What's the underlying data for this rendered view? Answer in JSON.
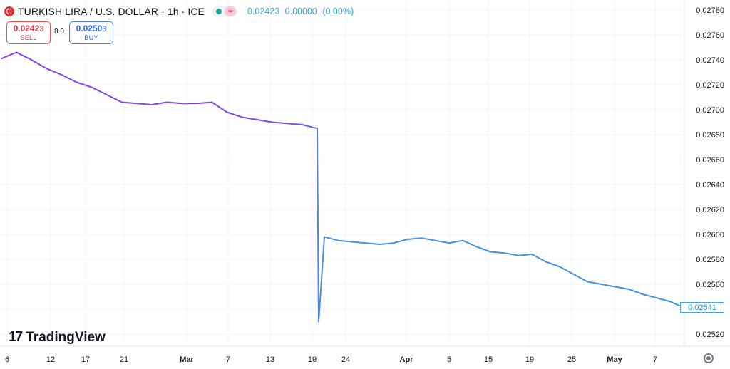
{
  "header": {
    "symbol_title": "TURKISH LIRA / U.S. DOLLAR · 1h · ICE",
    "last_price": "0.02423",
    "change": "0.00000",
    "change_pct": "(0.00%)",
    "wave_glyph": "≈"
  },
  "trade": {
    "sell_price_main": "0.0242",
    "sell_price_pip": "3",
    "sell_label": "SELL",
    "spread": "8.0",
    "buy_price_main": "0.0250",
    "buy_price_pip": "3",
    "buy_label": "BUY"
  },
  "branding": {
    "logo_mark": "17",
    "logo_text": "TradingView"
  },
  "price_label": "0.02541",
  "colors": {
    "line_start": "#8e3fee",
    "line_end": "#3b96e2",
    "grid": "#f0f3fa",
    "sell": "#e0384b",
    "buy": "#2962ff",
    "axis_text": "#131722"
  },
  "chart_data": {
    "type": "line",
    "title": "TURKISH LIRA / U.S. DOLLAR · 1h · ICE",
    "xlabel": "",
    "ylabel": "",
    "ylim": [
      0.0251,
      0.0278
    ],
    "grid": true,
    "y_axis_side": "right",
    "y_ticks": [
      "0.02780",
      "0.02760",
      "0.02740",
      "0.02720",
      "0.02700",
      "0.02680",
      "0.02660",
      "0.02640",
      "0.02620",
      "0.02600",
      "0.02580",
      "0.02560",
      "0.02540",
      "0.02520"
    ],
    "x_ticks": [
      "6",
      "12",
      "17",
      "21",
      "Mar",
      "7",
      "13",
      "19",
      "24",
      "Apr",
      "5",
      "15",
      "19",
      "25",
      "May",
      "7"
    ],
    "x_ticks_bold": [
      "Mar",
      "Apr",
      "May"
    ],
    "last_value": 0.02541,
    "series": [
      {
        "x": [
          "Feb 6",
          "Feb 8",
          "Feb 10",
          "Feb 12",
          "Feb 14",
          "Feb 16",
          "Feb 18",
          "Feb 20",
          "Feb 22",
          "Feb 24",
          "Feb 26",
          "Feb 28",
          "Mar 2",
          "Mar 4",
          "Mar 6",
          "Mar 8",
          "Mar 10",
          "Mar 12",
          "Mar 14",
          "Mar 16",
          "Mar 18",
          "Mar 19",
          "Mar 20",
          "Mar 20 12h",
          "Mar 21",
          "Mar 23",
          "Mar 25",
          "Mar 27",
          "Mar 29",
          "Apr 1",
          "Apr 3",
          "Apr 5",
          "Apr 7",
          "Apr 9",
          "Apr 11",
          "Apr 13",
          "Apr 15",
          "Apr 17",
          "Apr 19",
          "Apr 21",
          "Apr 23",
          "Apr 25",
          "Apr 27",
          "Apr 29",
          "May 1",
          "May 3",
          "May 5",
          "May 7",
          "May 9",
          "May 11"
        ],
        "values": [
          0.02741,
          0.02746,
          0.0274,
          0.02733,
          0.02728,
          0.02722,
          0.02718,
          0.02712,
          0.02706,
          0.02705,
          0.02704,
          0.02706,
          0.02705,
          0.02705,
          0.02706,
          0.02698,
          0.02694,
          0.02692,
          0.0269,
          0.02689,
          0.02688,
          0.02685,
          0.0253,
          0.02598,
          0.02595,
          0.02594,
          0.02593,
          0.02592,
          0.02593,
          0.02596,
          0.02597,
          0.02595,
          0.02593,
          0.02595,
          0.0259,
          0.02586,
          0.02585,
          0.02583,
          0.02584,
          0.02578,
          0.02574,
          0.02568,
          0.02562,
          0.0256,
          0.02558,
          0.02556,
          0.02552,
          0.02549,
          0.02546,
          0.02541
        ]
      }
    ]
  }
}
